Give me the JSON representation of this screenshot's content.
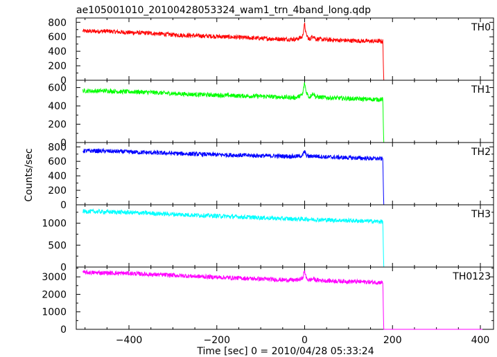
{
  "chart_data": {
    "type": "line",
    "title": "ae105001010_20100428053324_wam1_trn_4band_long.qdp",
    "xlabel": "Time [sec] 0 = 2010/04/28 05:33:24",
    "ylabel": "Counts/sec",
    "xlim": [
      -520,
      430
    ],
    "x_ticks": [
      -400,
      -200,
      0,
      200,
      400
    ],
    "x_tick_labels": [
      "−400",
      "−200",
      "0",
      "200",
      "400"
    ],
    "grid": false,
    "series": [
      {
        "name": "TH0",
        "color": "#ff0000",
        "ylim": [
          0,
          860
        ],
        "y_ticks": [
          0,
          200,
          400,
          600,
          800
        ],
        "points": [
          [
            -505,
            680
          ],
          [
            -480,
            675
          ],
          [
            -450,
            678
          ],
          [
            -420,
            665
          ],
          [
            -400,
            660
          ],
          [
            -350,
            650
          ],
          [
            -300,
            628
          ],
          [
            -250,
            615
          ],
          [
            -200,
            605
          ],
          [
            -150,
            592
          ],
          [
            -100,
            578
          ],
          [
            -50,
            568
          ],
          [
            -20,
            565
          ],
          [
            -5,
            600
          ],
          [
            0,
            780
          ],
          [
            3,
            640
          ],
          [
            10,
            560
          ],
          [
            20,
            620
          ],
          [
            25,
            570
          ],
          [
            50,
            560
          ],
          [
            100,
            548
          ],
          [
            150,
            540
          ],
          [
            178,
            540
          ],
          [
            180,
            0
          ],
          [
            405,
            0
          ]
        ]
      },
      {
        "name": "TH1",
        "color": "#00ff00",
        "ylim": [
          0,
          680
        ],
        "y_ticks": [
          0,
          200,
          400,
          600
        ],
        "points": [
          [
            -505,
            565
          ],
          [
            -480,
            562
          ],
          [
            -450,
            565
          ],
          [
            -420,
            555
          ],
          [
            -400,
            555
          ],
          [
            -350,
            548
          ],
          [
            -300,
            535
          ],
          [
            -250,
            525
          ],
          [
            -200,
            518
          ],
          [
            -150,
            510
          ],
          [
            -100,
            505
          ],
          [
            -50,
            495
          ],
          [
            -20,
            490
          ],
          [
            -5,
            520
          ],
          [
            0,
            650
          ],
          [
            3,
            560
          ],
          [
            10,
            495
          ],
          [
            20,
            540
          ],
          [
            25,
            500
          ],
          [
            50,
            490
          ],
          [
            100,
            480
          ],
          [
            150,
            472
          ],
          [
            178,
            470
          ],
          [
            180,
            0
          ],
          [
            405,
            0
          ]
        ]
      },
      {
        "name": "TH2",
        "color": "#0000ff",
        "ylim": [
          0,
          860
        ],
        "y_ticks": [
          0,
          200,
          400,
          600,
          800
        ],
        "points": [
          [
            -505,
            745
          ],
          [
            -480,
            745
          ],
          [
            -450,
            740
          ],
          [
            -420,
            735
          ],
          [
            -400,
            730
          ],
          [
            -350,
            720
          ],
          [
            -300,
            710
          ],
          [
            -250,
            700
          ],
          [
            -200,
            692
          ],
          [
            -150,
            685
          ],
          [
            -100,
            678
          ],
          [
            -50,
            672
          ],
          [
            -20,
            668
          ],
          [
            -5,
            680
          ],
          [
            0,
            740
          ],
          [
            3,
            690
          ],
          [
            10,
            665
          ],
          [
            20,
            675
          ],
          [
            50,
            660
          ],
          [
            100,
            650
          ],
          [
            150,
            640
          ],
          [
            178,
            635
          ],
          [
            180,
            0
          ],
          [
            405,
            0
          ]
        ]
      },
      {
        "name": "TH3",
        "color": "#00ffff",
        "ylim": [
          0,
          1420
        ],
        "y_ticks": [
          0,
          500,
          1000
        ],
        "points": [
          [
            -505,
            1270
          ],
          [
            -480,
            1265
          ],
          [
            -450,
            1258
          ],
          [
            -420,
            1250
          ],
          [
            -400,
            1245
          ],
          [
            -350,
            1225
          ],
          [
            -300,
            1205
          ],
          [
            -250,
            1185
          ],
          [
            -200,
            1165
          ],
          [
            -150,
            1145
          ],
          [
            -100,
            1125
          ],
          [
            -50,
            1105
          ],
          [
            -20,
            1095
          ],
          [
            0,
            1095
          ],
          [
            20,
            1085
          ],
          [
            50,
            1075
          ],
          [
            100,
            1060
          ],
          [
            150,
            1045
          ],
          [
            178,
            1035
          ],
          [
            180,
            0
          ],
          [
            405,
            0
          ]
        ]
      },
      {
        "name": "TH0123",
        "color": "#ff00ff",
        "ylim": [
          0,
          3560
        ],
        "y_ticks": [
          0,
          1000,
          2000,
          3000
        ],
        "points": [
          [
            -505,
            3250
          ],
          [
            -480,
            3240
          ],
          [
            -450,
            3225
          ],
          [
            -420,
            3210
          ],
          [
            -400,
            3200
          ],
          [
            -350,
            3140
          ],
          [
            -300,
            3090
          ],
          [
            -250,
            3030
          ],
          [
            -200,
            2980
          ],
          [
            -150,
            2930
          ],
          [
            -100,
            2880
          ],
          [
            -50,
            2830
          ],
          [
            -20,
            2810
          ],
          [
            -5,
            2900
          ],
          [
            0,
            3350
          ],
          [
            3,
            2960
          ],
          [
            10,
            2800
          ],
          [
            20,
            2900
          ],
          [
            25,
            2820
          ],
          [
            50,
            2780
          ],
          [
            100,
            2740
          ],
          [
            150,
            2700
          ],
          [
            178,
            2680
          ],
          [
            180,
            0
          ],
          [
            405,
            0
          ]
        ]
      }
    ]
  }
}
